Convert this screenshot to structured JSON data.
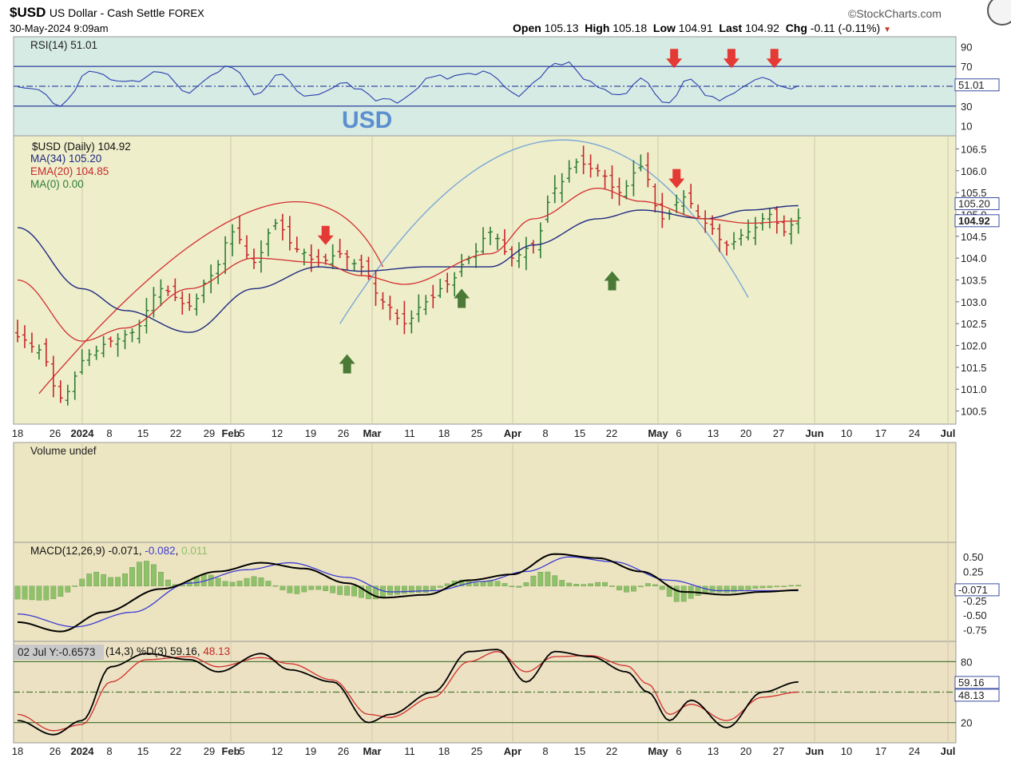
{
  "header": {
    "symbol": "$USD",
    "name": "US Dollar - Cash Settle",
    "exchange": "FOREX",
    "date": "30-May-2024 9:09am",
    "brand": "©StockCharts.com",
    "quote": [
      {
        "label": "Open",
        "value": "105.13"
      },
      {
        "label": "High",
        "value": "105.18"
      },
      {
        "label": "Low",
        "value": "104.91"
      },
      {
        "label": "Last",
        "value": "104.92"
      },
      {
        "label": "Chg",
        "value": "-0.11 (-0.11%)"
      }
    ],
    "down_color": "#c0392b"
  },
  "annotation_text": "USD",
  "colors": {
    "panel_rsi": "#d6ebe3",
    "panel_price": "#eeeecb",
    "panel_vol": "#ede6c2",
    "panel_macd": "#ece3c0",
    "panel_sto": "#ece1c3",
    "bar_up": "#2e7d32",
    "bar_down": "#c62828",
    "ma34": "#1f2a80",
    "ema20": "#d32f2f",
    "arc": "#7aa7d6",
    "arrow_down": "#e53935",
    "arrow_up": "#4a7a35",
    "macd_line": "#000000",
    "signal_line": "#3c3cd6",
    "histogram": "#8fc16a"
  },
  "chart_data": [
    {
      "type": "line",
      "panel": "rsi",
      "title": "RSI(14) 51.01",
      "value_tag": "51.01",
      "y_ticks": [
        "90",
        "70",
        "50",
        "30",
        "10"
      ],
      "ylim": [
        0,
        100
      ],
      "reference_lines": [
        70,
        50,
        30
      ]
    },
    {
      "type": "bar",
      "panel": "price",
      "legend": [
        "$USD (Daily) 104.92",
        "MA(34) 105.20",
        "EMA(20) 104.85",
        "MA(0) 0.00"
      ],
      "y_ticks": [
        "106.5",
        "106.0",
        "105.5",
        "105.0",
        "104.5",
        "104.0",
        "103.5",
        "103.0",
        "102.5",
        "102.0",
        "101.5",
        "101.0",
        "100.5"
      ],
      "ylim": [
        100.2,
        106.8
      ],
      "value_tags": [
        "105.20",
        "104.92"
      ],
      "x_ticks": [
        "18",
        "26",
        "2024",
        "8",
        "15",
        "22",
        "29",
        "Feb",
        "5",
        "12",
        "19",
        "26",
        "Mar",
        "11",
        "18",
        "25",
        "Apr",
        "8",
        "15",
        "22",
        "May",
        "6",
        "13",
        "20",
        "27",
        "Jun",
        "10",
        "17",
        "24",
        "Jul"
      ],
      "close_points": [
        [
          0,
          102.2
        ],
        [
          3,
          101.9
        ],
        [
          6,
          100.8
        ],
        [
          10,
          101.8
        ],
        [
          13,
          102.1
        ],
        [
          16,
          102.3
        ],
        [
          20,
          103.3
        ],
        [
          24,
          102.9
        ],
        [
          27,
          103.6
        ],
        [
          30,
          104.6
        ],
        [
          33,
          103.9
        ],
        [
          36,
          104.8
        ],
        [
          39,
          104.2
        ],
        [
          42,
          103.9
        ],
        [
          45,
          104.1
        ],
        [
          48,
          103.8
        ],
        [
          51,
          103.0
        ],
        [
          54,
          102.5
        ],
        [
          57,
          103.0
        ],
        [
          60,
          103.4
        ],
        [
          63,
          104.0
        ],
        [
          66,
          104.6
        ],
        [
          69,
          104.0
        ],
        [
          72,
          104.3
        ],
        [
          75,
          105.6
        ],
        [
          78,
          106.2
        ],
        [
          81,
          106.0
        ],
        [
          84,
          105.5
        ],
        [
          87,
          106.1
        ],
        [
          90,
          104.9
        ],
        [
          93,
          105.4
        ],
        [
          96,
          104.8
        ],
        [
          99,
          104.3
        ],
        [
          102,
          104.6
        ],
        [
          105,
          105.0
        ],
        [
          107,
          104.6
        ],
        [
          109,
          104.92
        ]
      ],
      "ma34_points": [
        [
          0,
          104.7
        ],
        [
          9,
          103.3
        ],
        [
          15,
          102.8
        ],
        [
          24,
          102.3
        ],
        [
          33,
          103.3
        ],
        [
          42,
          103.8
        ],
        [
          48,
          103.7
        ],
        [
          57,
          103.8
        ],
        [
          66,
          103.8
        ],
        [
          72,
          104.3
        ],
        [
          81,
          104.9
        ],
        [
          87,
          105.1
        ],
        [
          96,
          104.9
        ],
        [
          102,
          105.1
        ],
        [
          109,
          105.2
        ]
      ],
      "ema20_points": [
        [
          0,
          103.5
        ],
        [
          9,
          102.1
        ],
        [
          15,
          102.4
        ],
        [
          24,
          103.3
        ],
        [
          33,
          104.0
        ],
        [
          42,
          103.9
        ],
        [
          48,
          103.6
        ],
        [
          54,
          103.4
        ],
        [
          66,
          104.1
        ],
        [
          72,
          104.9
        ],
        [
          81,
          105.6
        ],
        [
          87,
          105.3
        ],
        [
          96,
          104.9
        ],
        [
          102,
          104.8
        ],
        [
          109,
          104.85
        ]
      ],
      "arc1_points": [
        [
          3,
          100.9
        ],
        [
          33,
          105.1
        ],
        [
          51,
          103.8
        ]
      ],
      "arc2_points": [
        [
          45,
          102.5
        ],
        [
          75,
          106.7
        ],
        [
          102,
          103.1
        ]
      ],
      "arrows": [
        {
          "dir": "down",
          "i": 43,
          "v": 104.3
        },
        {
          "dir": "up",
          "i": 46,
          "v": 101.8
        },
        {
          "dir": "up",
          "i": 62,
          "v": 103.3
        },
        {
          "dir": "up",
          "i": 83,
          "v": 103.7
        },
        {
          "dir": "down",
          "i": 92,
          "v": 105.6
        }
      ]
    },
    {
      "type": "bar",
      "panel": "volume",
      "title": "Volume undef"
    },
    {
      "type": "line",
      "panel": "macd",
      "title": "MACD(12,26,9) -0.071, -0.082, 0.011",
      "series_labels": [
        "-0.071",
        "-0.082",
        "0.011"
      ],
      "value_tag": "-0.071",
      "y_ticks": [
        "0.50",
        "0.25",
        "-0.25",
        "-0.50",
        "-0.75"
      ],
      "ylim": [
        -0.95,
        0.75
      ],
      "macd_points": [
        [
          0,
          -0.62
        ],
        [
          6,
          -0.78
        ],
        [
          12,
          -0.45
        ],
        [
          20,
          -0.05
        ],
        [
          28,
          0.25
        ],
        [
          34,
          0.4
        ],
        [
          40,
          0.3
        ],
        [
          46,
          0.05
        ],
        [
          51,
          -0.2
        ],
        [
          57,
          -0.15
        ],
        [
          63,
          0.1
        ],
        [
          69,
          0.2
        ],
        [
          75,
          0.55
        ],
        [
          81,
          0.48
        ],
        [
          87,
          0.25
        ],
        [
          93,
          -0.1
        ],
        [
          99,
          -0.15
        ],
        [
          104,
          -0.1
        ],
        [
          109,
          -0.07
        ]
      ],
      "signal_points": [
        [
          0,
          -0.48
        ],
        [
          8,
          -0.7
        ],
        [
          16,
          -0.45
        ],
        [
          24,
          0.05
        ],
        [
          32,
          0.28
        ],
        [
          38,
          0.4
        ],
        [
          46,
          0.15
        ],
        [
          52,
          -0.1
        ],
        [
          58,
          -0.08
        ],
        [
          65,
          0.08
        ],
        [
          71,
          0.25
        ],
        [
          77,
          0.5
        ],
        [
          83,
          0.42
        ],
        [
          91,
          0.1
        ],
        [
          98,
          -0.08
        ],
        [
          104,
          -0.08
        ],
        [
          109,
          -0.08
        ]
      ]
    },
    {
      "type": "line",
      "panel": "stochastic",
      "title": "(14,3) %D(3) 59.16, 48.13",
      "tooltip": "02 Jul Y:-0.6573",
      "series_labels": [
        "59.16",
        "48.13"
      ],
      "value_tags": [
        "59.16",
        "48.13"
      ],
      "y_ticks": [
        "80",
        "20"
      ],
      "ylim": [
        0,
        100
      ],
      "reference_lines": [
        80,
        50,
        20
      ],
      "k_points": [
        [
          0,
          22
        ],
        [
          5,
          8
        ],
        [
          9,
          22
        ],
        [
          13,
          75
        ],
        [
          18,
          88
        ],
        [
          24,
          82
        ],
        [
          28,
          70
        ],
        [
          34,
          88
        ],
        [
          38,
          72
        ],
        [
          44,
          60
        ],
        [
          49,
          20
        ],
        [
          52,
          28
        ],
        [
          58,
          50
        ],
        [
          63,
          90
        ],
        [
          67,
          92
        ],
        [
          71,
          60
        ],
        [
          75,
          90
        ],
        [
          80,
          85
        ],
        [
          85,
          70
        ],
        [
          88,
          50
        ],
        [
          91,
          22
        ],
        [
          94,
          42
        ],
        [
          99,
          15
        ],
        [
          104,
          50
        ],
        [
          109,
          60
        ]
      ],
      "d_points": [
        [
          0,
          28
        ],
        [
          5,
          12
        ],
        [
          9,
          18
        ],
        [
          13,
          60
        ],
        [
          18,
          82
        ],
        [
          24,
          85
        ],
        [
          28,
          75
        ],
        [
          34,
          84
        ],
        [
          38,
          78
        ],
        [
          44,
          62
        ],
        [
          49,
          28
        ],
        [
          52,
          25
        ],
        [
          58,
          45
        ],
        [
          63,
          80
        ],
        [
          67,
          90
        ],
        [
          71,
          70
        ],
        [
          75,
          85
        ],
        [
          80,
          86
        ],
        [
          85,
          76
        ],
        [
          88,
          58
        ],
        [
          91,
          28
        ],
        [
          94,
          38
        ],
        [
          99,
          22
        ],
        [
          104,
          45
        ],
        [
          109,
          50
        ]
      ]
    }
  ]
}
